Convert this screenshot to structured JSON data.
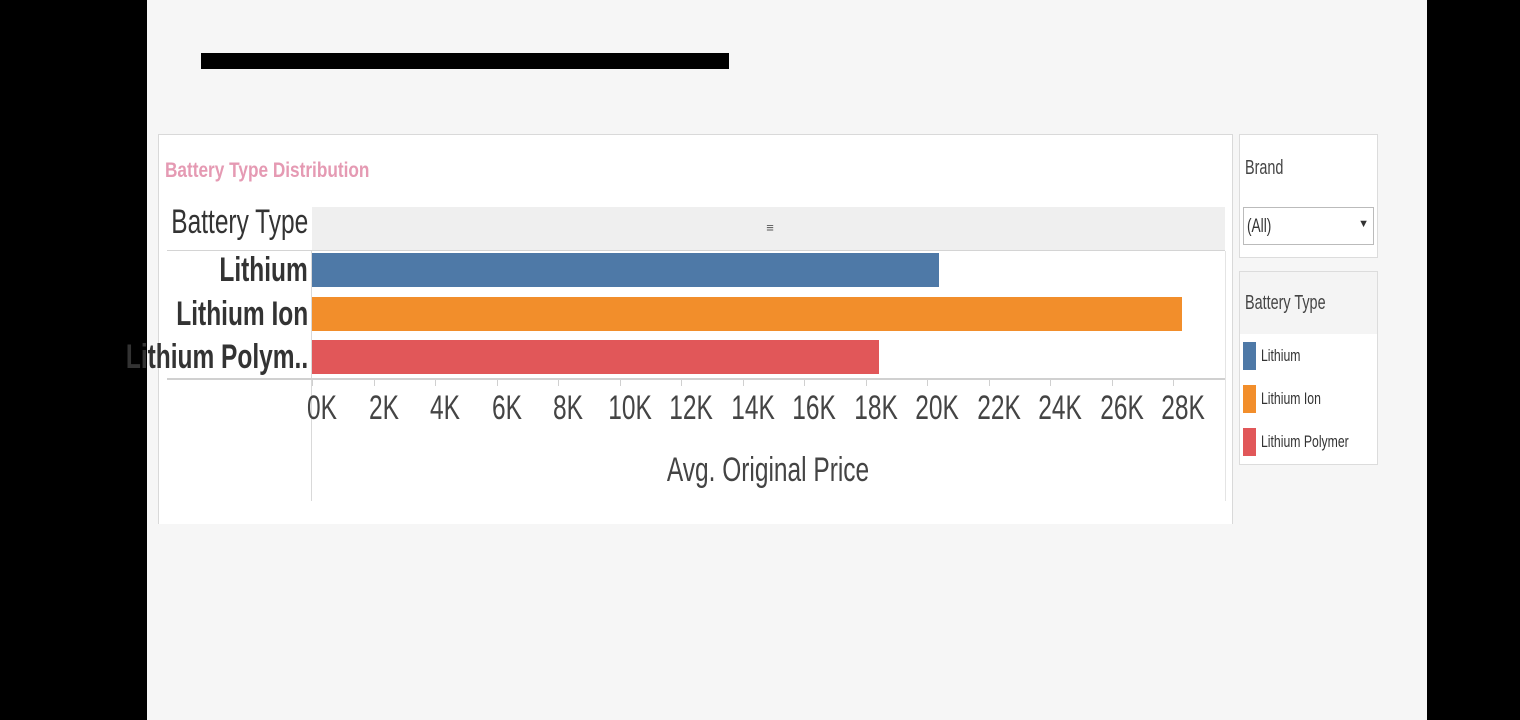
{
  "chart_data": {
    "type": "bar",
    "orientation": "horizontal",
    "title": "Battery Type Distribution",
    "row_header": "Battery Type",
    "categories": [
      "Lithium",
      "Lithium Ion",
      "Lithium Polym.."
    ],
    "values": [
      20400,
      28300,
      18450
    ],
    "colors": [
      "#4e79a7",
      "#f28e2b",
      "#e15759"
    ],
    "xlabel": "Avg. Original Price",
    "xlim": [
      0,
      29500
    ],
    "xticks": [
      {
        "value": 0,
        "label": "0K"
      },
      {
        "value": 2000,
        "label": "2K"
      },
      {
        "value": 4000,
        "label": "4K"
      },
      {
        "value": 6000,
        "label": "6K"
      },
      {
        "value": 8000,
        "label": "8K"
      },
      {
        "value": 10000,
        "label": "10K"
      },
      {
        "value": 12000,
        "label": "12K"
      },
      {
        "value": 14000,
        "label": "14K"
      },
      {
        "value": 16000,
        "label": "16K"
      },
      {
        "value": 18000,
        "label": "18K"
      },
      {
        "value": 20000,
        "label": "20K"
      },
      {
        "value": 22000,
        "label": "22K"
      },
      {
        "value": 24000,
        "label": "24K"
      },
      {
        "value": 26000,
        "label": "26K"
      },
      {
        "value": 28000,
        "label": "28K"
      }
    ],
    "grid": false,
    "legend_position": "right"
  },
  "filter": {
    "title": "Brand",
    "value": "(All)"
  },
  "legend": {
    "title": "Battery Type",
    "items": [
      {
        "label": "Lithium",
        "color": "#4e79a7"
      },
      {
        "label": "Lithium Ion",
        "color": "#f28e2b"
      },
      {
        "label": "Lithium Polymer",
        "color": "#e15759"
      }
    ]
  },
  "icons": {
    "sort": "sort-icon",
    "dropdown": "chevron-down-icon"
  }
}
